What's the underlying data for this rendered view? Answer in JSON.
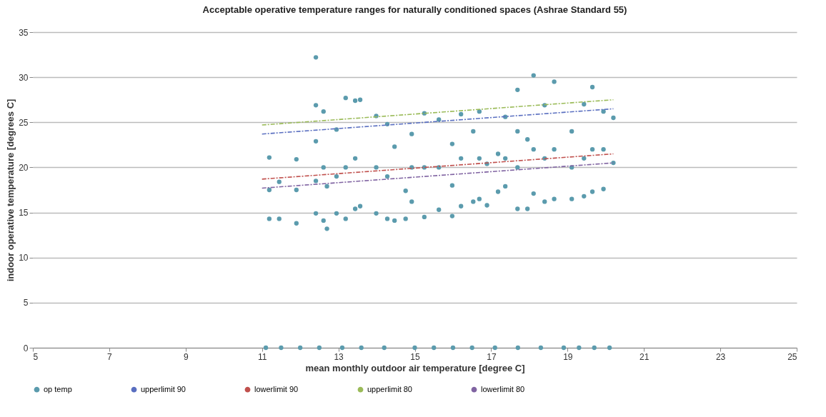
{
  "chart_data": {
    "type": "scatter",
    "title": "Acceptable operative temperature ranges for naturally conditioned spaces (Ashrae Standard 55)",
    "xlabel": "mean monthly outdoor air temperature [degree C]",
    "ylabel": "indoor operative temperature [degrees C]",
    "xlim": [
      5,
      25
    ],
    "xticks": [
      5,
      7,
      9,
      11,
      13,
      15,
      17,
      19,
      21,
      23,
      25
    ],
    "ylim": [
      0,
      35
    ],
    "yticks": [
      0,
      5,
      10,
      15,
      20,
      25,
      30,
      35
    ],
    "grid": "y",
    "legend": "bottom",
    "series": [
      {
        "name": "op temp",
        "color": "#5b9bad",
        "marker": "circle",
        "x": [
          11.19,
          11.19,
          11.19,
          11.45,
          11.45,
          11.9,
          11.9,
          11.9,
          12.41,
          12.41,
          12.41,
          12.41,
          12.41,
          12.61,
          12.61,
          12.61,
          12.7,
          12.7,
          12.95,
          12.95,
          12.95,
          13.19,
          13.19,
          13.19,
          13.44,
          13.44,
          13.44,
          13.57,
          13.57,
          13.99,
          13.99,
          13.99,
          14.28,
          14.28,
          14.28,
          14.47,
          14.47,
          14.76,
          14.76,
          14.92,
          14.92,
          14.92,
          15.25,
          15.25,
          15.25,
          15.63,
          15.63,
          15.63,
          15.98,
          15.98,
          15.98,
          16.21,
          16.21,
          16.21,
          16.53,
          16.53,
          16.69,
          16.69,
          16.69,
          16.89,
          16.89,
          17.18,
          17.18,
          17.37,
          17.37,
          17.37,
          17.69,
          17.69,
          17.69,
          17.69,
          17.95,
          17.95,
          18.11,
          18.11,
          18.11,
          18.4,
          18.4,
          18.4,
          18.65,
          18.65,
          18.65,
          19.11,
          19.11,
          19.11,
          19.43,
          19.43,
          19.43,
          19.65,
          19.65,
          19.65,
          19.94,
          19.94,
          19.94,
          20.2,
          20.2,
          11.1,
          11.5,
          12.0,
          12.5,
          13.1,
          13.6,
          14.2,
          15.0,
          15.5,
          16.0,
          16.5,
          17.1,
          17.7,
          18.3,
          18.9,
          19.3,
          19.7,
          20.1
        ],
        "values": [
          21.1,
          17.5,
          14.3,
          18.4,
          14.3,
          20.9,
          17.5,
          13.8,
          32.2,
          26.9,
          22.9,
          18.5,
          14.9,
          26.2,
          20,
          14.1,
          17.9,
          13.2,
          24.2,
          19,
          14.9,
          27.7,
          20,
          14.3,
          27.4,
          21,
          15.4,
          27.5,
          15.7,
          25.7,
          20,
          14.9,
          24.8,
          19,
          14.3,
          22.3,
          14.1,
          17.4,
          14.3,
          23.7,
          20,
          16.2,
          26,
          20,
          14.5,
          25.3,
          20,
          15.3,
          22.6,
          18,
          14.6,
          25.9,
          21,
          15.7,
          24,
          16.2,
          26.2,
          21,
          16.5,
          20.4,
          15.8,
          21.5,
          17.3,
          25.6,
          21,
          17.9,
          28.6,
          24,
          20,
          15.4,
          23.1,
          15.4,
          30.2,
          22,
          17.1,
          26.9,
          21,
          16.2,
          29.5,
          22,
          16.5,
          24,
          20,
          16.5,
          27,
          21,
          16.8,
          28.9,
          22,
          17.3,
          26.2,
          22,
          17.6,
          25.5,
          20.5,
          0,
          0,
          0,
          0,
          0,
          0,
          0,
          0,
          0,
          0,
          0,
          0,
          0,
          0,
          0,
          0,
          0,
          0
        ]
      },
      {
        "name": "upperlimit 90",
        "type": "line",
        "color": "#5a6fc0",
        "line_style": "dashed",
        "x": [
          11,
          20.2
        ],
        "values": [
          23.7,
          26.5
        ]
      },
      {
        "name": "lowerlimit 90",
        "type": "line",
        "color": "#c0504d",
        "line_style": "dashed",
        "x": [
          11,
          20.2
        ],
        "values": [
          18.7,
          21.5
        ]
      },
      {
        "name": "upperlimit 80",
        "type": "line",
        "color": "#9bbb59",
        "line_style": "dashed",
        "x": [
          11,
          20.2
        ],
        "values": [
          24.7,
          27.5
        ]
      },
      {
        "name": "lowerlimit 80",
        "type": "line",
        "color": "#8064a2",
        "line_style": "dashed",
        "x": [
          11,
          20.2
        ],
        "values": [
          17.7,
          20.5
        ]
      }
    ]
  }
}
